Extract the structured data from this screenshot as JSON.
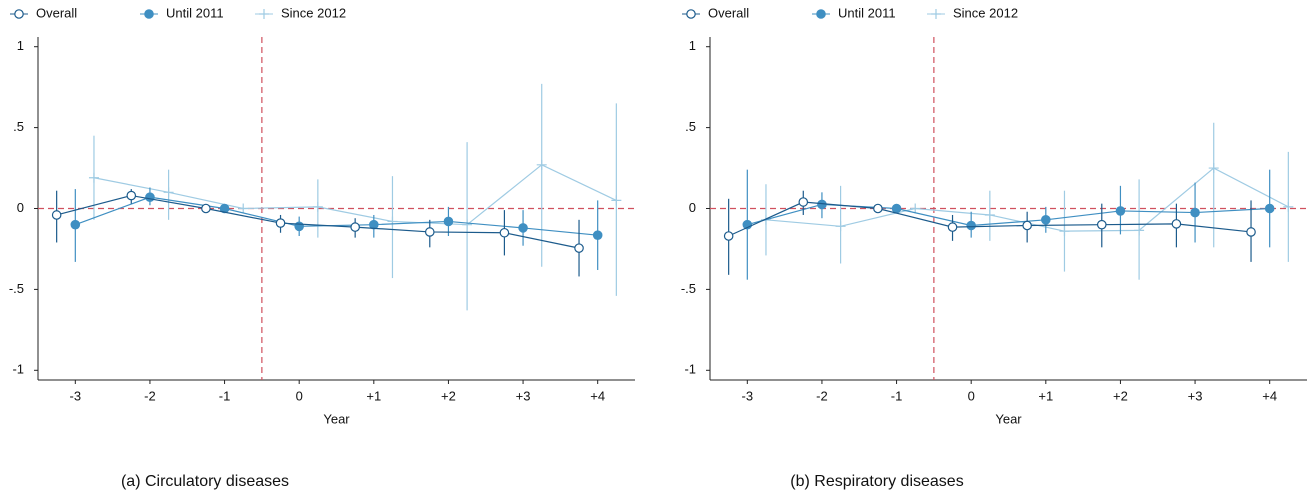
{
  "chart_data": [
    {
      "type": "line",
      "caption": "(a)  Circulatory diseases",
      "xlabel": "Year",
      "x": [
        -3,
        -2,
        -1,
        0,
        1,
        2,
        3,
        4
      ],
      "xlim": [
        -3.5,
        4.5
      ],
      "xticks": [
        -3,
        -2,
        -1,
        0,
        {
          "value": 1,
          "label": "+1"
        },
        {
          "value": 2,
          "label": "+2"
        },
        {
          "value": 3,
          "label": "+3"
        },
        {
          "value": 4,
          "label": "+4"
        }
      ],
      "ylim": [
        -1.06,
        1.06
      ],
      "yticks": [
        {
          "value": -1,
          "label": "-1"
        },
        {
          "value": -0.5,
          "label": "-.5"
        },
        0,
        {
          "value": 0.5,
          "label": ".5"
        },
        1
      ],
      "vline": -0.5,
      "hline": 0,
      "refline_color": "#d0505e",
      "series": [
        {
          "name": "Overall",
          "color": "#1c5b8c",
          "marker": "hollow-circle",
          "values": [
            -0.04,
            0.08,
            0,
            -0.09,
            -0.115,
            -0.145,
            -0.15,
            -0.245
          ],
          "lower": [
            -0.21,
            0.03,
            0,
            -0.15,
            -0.18,
            -0.24,
            -0.29,
            -0.42
          ],
          "upper": [
            0.11,
            0.12,
            0,
            -0.04,
            -0.06,
            -0.07,
            -0.01,
            -0.07
          ]
        },
        {
          "name": "Until 2011",
          "color": "#3f8fc2",
          "marker": "filled-circle",
          "values": [
            -0.1,
            0.07,
            0,
            -0.11,
            -0.1,
            -0.08,
            -0.12,
            -0.165
          ],
          "lower": [
            -0.33,
            0.02,
            0,
            -0.17,
            -0.18,
            -0.17,
            -0.23,
            -0.38
          ],
          "upper": [
            0.12,
            0.13,
            0,
            -0.05,
            -0.04,
            0.01,
            -0.01,
            0.05
          ]
        },
        {
          "name": "Since 2012",
          "color": "#9fcbe3",
          "marker": "plus",
          "values": [
            0.19,
            0.1,
            0,
            0.01,
            -0.08,
            -0.1,
            0.27,
            0.05
          ],
          "lower": [
            -0.07,
            -0.07,
            0,
            -0.18,
            -0.43,
            -0.63,
            -0.36,
            -0.54
          ],
          "upper": [
            0.45,
            0.24,
            0,
            0.18,
            0.2,
            0.41,
            0.77,
            0.65
          ]
        }
      ]
    },
    {
      "type": "line",
      "caption": "(b)  Respiratory diseases",
      "xlabel": "Year",
      "x": [
        -3,
        -2,
        -1,
        0,
        1,
        2,
        3,
        4
      ],
      "xlim": [
        -3.5,
        4.5
      ],
      "xticks": [
        -3,
        -2,
        -1,
        0,
        {
          "value": 1,
          "label": "+1"
        },
        {
          "value": 2,
          "label": "+2"
        },
        {
          "value": 3,
          "label": "+3"
        },
        {
          "value": 4,
          "label": "+4"
        }
      ],
      "ylim": [
        -1.06,
        1.06
      ],
      "yticks": [
        {
          "value": -1,
          "label": "-1"
        },
        {
          "value": -0.5,
          "label": "-.5"
        },
        0,
        {
          "value": 0.5,
          "label": ".5"
        },
        1
      ],
      "vline": -0.5,
      "hline": 0,
      "refline_color": "#d0505e",
      "series": [
        {
          "name": "Overall",
          "color": "#1c5b8c",
          "marker": "hollow-circle",
          "values": [
            -0.17,
            0.04,
            0,
            -0.115,
            -0.105,
            -0.1,
            -0.095,
            -0.145
          ],
          "lower": [
            -0.41,
            -0.04,
            0,
            -0.2,
            -0.21,
            -0.24,
            -0.24,
            -0.33
          ],
          "upper": [
            0.06,
            0.11,
            0,
            -0.04,
            -0.02,
            0.03,
            0.03,
            0.05
          ]
        },
        {
          "name": "Until 2011",
          "color": "#3f8fc2",
          "marker": "filled-circle",
          "values": [
            -0.1,
            0.025,
            0,
            -0.105,
            -0.07,
            -0.015,
            -0.025,
            0
          ],
          "lower": [
            -0.44,
            -0.06,
            0,
            -0.18,
            -0.15,
            -0.16,
            -0.21,
            -0.24
          ],
          "upper": [
            0.24,
            0.1,
            0,
            -0.02,
            0.01,
            0.14,
            0.16,
            0.24
          ]
        },
        {
          "name": "Since 2012",
          "color": "#9fcbe3",
          "marker": "plus",
          "values": [
            -0.07,
            -0.11,
            0,
            -0.04,
            -0.14,
            -0.135,
            0.25,
            0.01
          ],
          "lower": [
            -0.29,
            -0.34,
            0,
            -0.2,
            -0.39,
            -0.44,
            -0.24,
            -0.33
          ],
          "upper": [
            0.15,
            0.14,
            0,
            0.11,
            0.11,
            0.18,
            0.53,
            0.35
          ]
        }
      ]
    }
  ]
}
